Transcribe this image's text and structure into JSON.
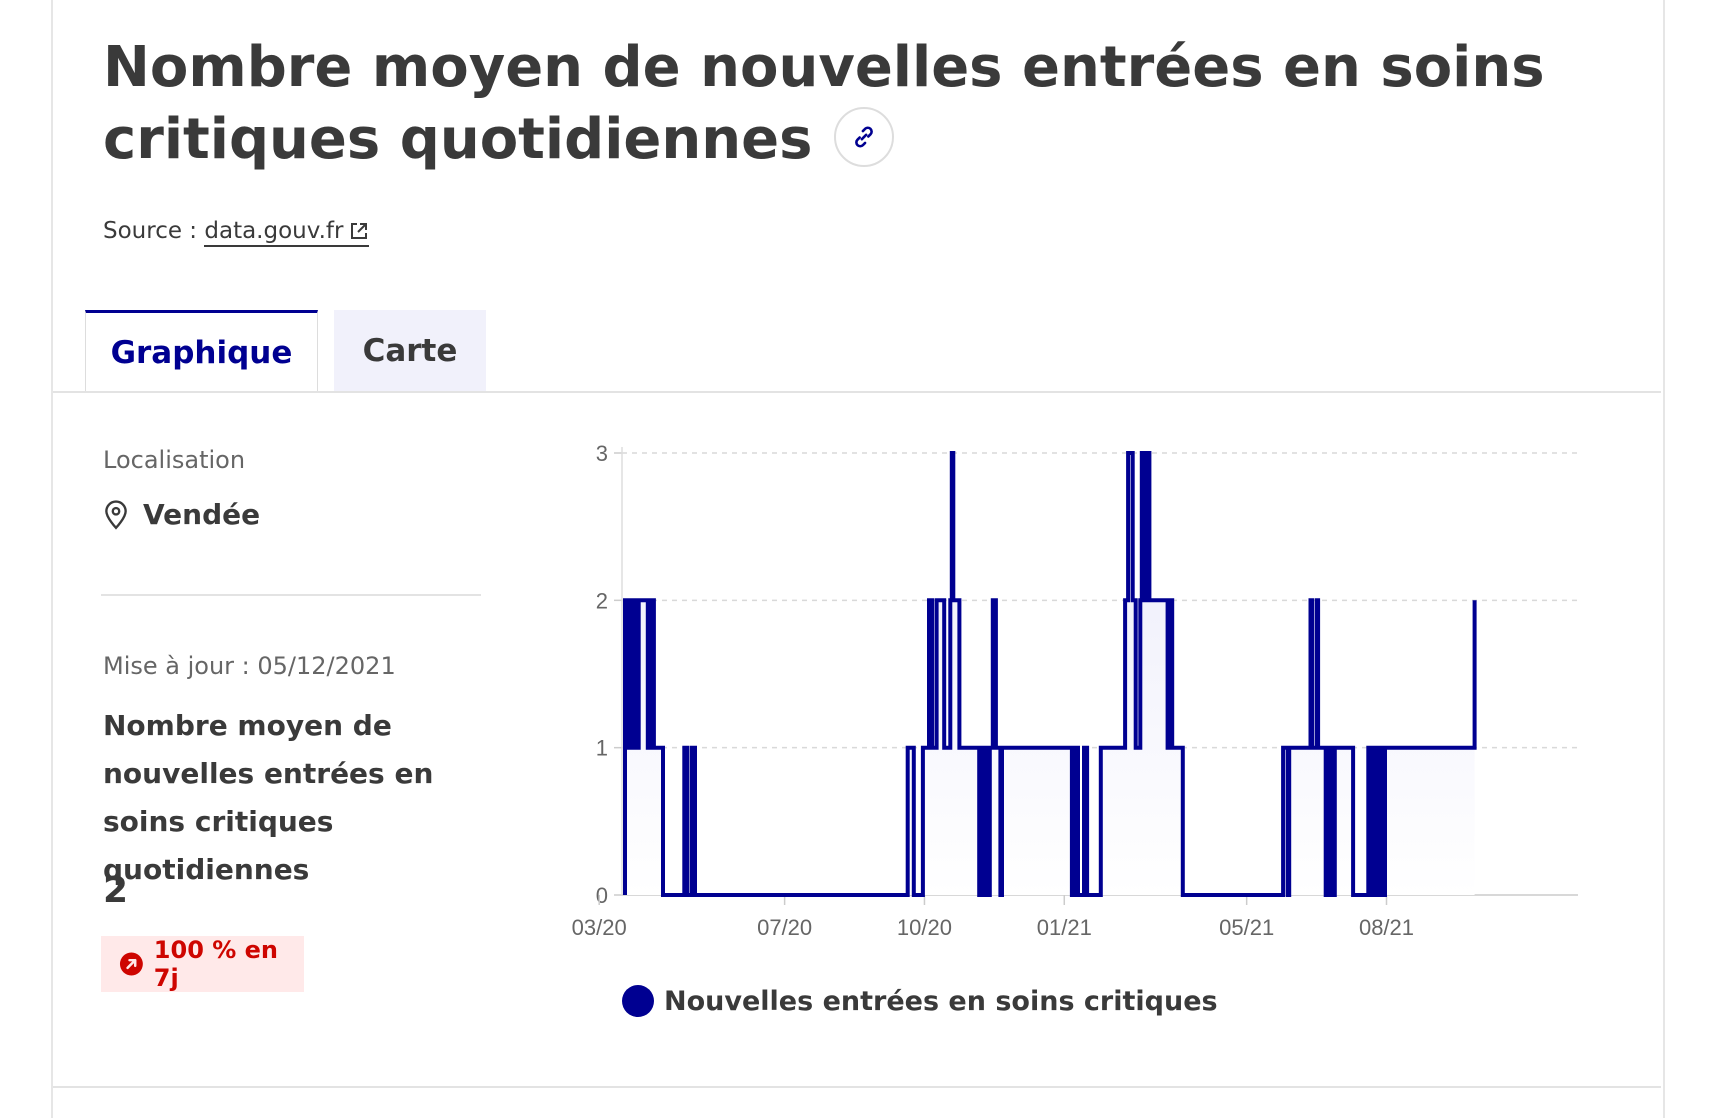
{
  "page": {
    "title": "Nombre moyen de nouvelles entrées en soins critiques quotidiennes",
    "source_prefix": "Source : ",
    "source_link": "data.gouv.fr"
  },
  "tabs": [
    {
      "label": "Graphique",
      "active": true
    },
    {
      "label": "Carte",
      "active": false
    }
  ],
  "sidebar": {
    "location_label": "Localisation",
    "location_value": "Vendée",
    "update_text": "Mise à jour : 05/12/2021",
    "indicator_name": "Nombre moyen de nouvelles entrées en soins critiques quotidiennes",
    "indicator_value": "2",
    "trend_text": "100 % en 7j"
  },
  "colors": {
    "accent": "#000091",
    "trend_bg": "#ffe9e9",
    "trend_fg": "#ce0500"
  },
  "chart_data": {
    "type": "area",
    "x_tick_labels": [
      "03/20",
      "07/20",
      "10/20",
      "01/21",
      "05/21",
      "08/21"
    ],
    "y_ticks": [
      0,
      1,
      2,
      3
    ],
    "ylim": [
      0,
      3
    ],
    "grid": true,
    "legend_position": "bottom-left",
    "series": [
      {
        "name": "Nouvelles entrées en soins critiques",
        "color": "#000091",
        "points": [
          [
            "2020-03-18",
            2
          ],
          [
            "2020-03-19",
            1
          ],
          [
            "2020-03-21",
            2
          ],
          [
            "2020-03-22",
            1
          ],
          [
            "2020-03-24",
            2
          ],
          [
            "2020-03-26",
            1
          ],
          [
            "2020-03-27",
            2
          ],
          [
            "2020-04-02",
            1
          ],
          [
            "2020-04-04",
            2
          ],
          [
            "2020-04-06",
            1
          ],
          [
            "2020-04-12",
            0
          ],
          [
            "2020-04-26",
            1
          ],
          [
            "2020-04-28",
            0
          ],
          [
            "2020-05-01",
            1
          ],
          [
            "2020-05-03",
            0
          ],
          [
            "2020-09-20",
            1
          ],
          [
            "2020-09-24",
            0
          ],
          [
            "2020-09-30",
            1
          ],
          [
            "2020-10-04",
            2
          ],
          [
            "2020-10-06",
            1
          ],
          [
            "2020-10-09",
            2
          ],
          [
            "2020-10-14",
            1
          ],
          [
            "2020-10-18",
            2
          ],
          [
            "2020-10-19",
            3
          ],
          [
            "2020-10-20",
            2
          ],
          [
            "2020-10-24",
            1
          ],
          [
            "2020-11-06",
            0
          ],
          [
            "2020-11-07",
            1
          ],
          [
            "2020-11-09",
            0
          ],
          [
            "2020-11-10",
            1
          ],
          [
            "2020-11-12",
            0
          ],
          [
            "2020-11-13",
            1
          ],
          [
            "2020-11-15",
            2
          ],
          [
            "2020-11-17",
            1
          ],
          [
            "2020-11-20",
            0
          ],
          [
            "2020-11-21",
            1
          ],
          [
            "2021-01-06",
            0
          ],
          [
            "2021-01-08",
            1
          ],
          [
            "2021-01-10",
            0
          ],
          [
            "2021-01-14",
            1
          ],
          [
            "2021-01-16",
            0
          ],
          [
            "2021-01-25",
            1
          ],
          [
            "2021-02-10",
            2
          ],
          [
            "2021-02-12",
            3
          ],
          [
            "2021-02-15",
            2
          ],
          [
            "2021-02-17",
            1
          ],
          [
            "2021-02-20",
            2
          ],
          [
            "2021-02-21",
            3
          ],
          [
            "2021-02-23",
            2
          ],
          [
            "2021-02-24",
            3
          ],
          [
            "2021-02-26",
            2
          ],
          [
            "2021-03-10",
            1
          ],
          [
            "2021-03-12",
            2
          ],
          [
            "2021-03-13",
            1
          ],
          [
            "2021-03-20",
            0
          ],
          [
            "2021-05-25",
            1
          ],
          [
            "2021-05-28",
            0
          ],
          [
            "2021-05-29",
            1
          ],
          [
            "2021-06-12",
            2
          ],
          [
            "2021-06-13",
            1
          ],
          [
            "2021-06-16",
            2
          ],
          [
            "2021-06-17",
            1
          ],
          [
            "2021-06-22",
            0
          ],
          [
            "2021-06-24",
            1
          ],
          [
            "2021-06-26",
            0
          ],
          [
            "2021-06-28",
            1
          ],
          [
            "2021-07-10",
            0
          ],
          [
            "2021-07-20",
            1
          ],
          [
            "2021-07-22",
            0
          ],
          [
            "2021-07-24",
            1
          ],
          [
            "2021-07-26",
            0
          ],
          [
            "2021-07-27",
            1
          ],
          [
            "2021-07-29",
            0
          ],
          [
            "2021-07-31",
            1
          ],
          [
            "2021-09-28",
            2
          ]
        ]
      }
    ]
  }
}
